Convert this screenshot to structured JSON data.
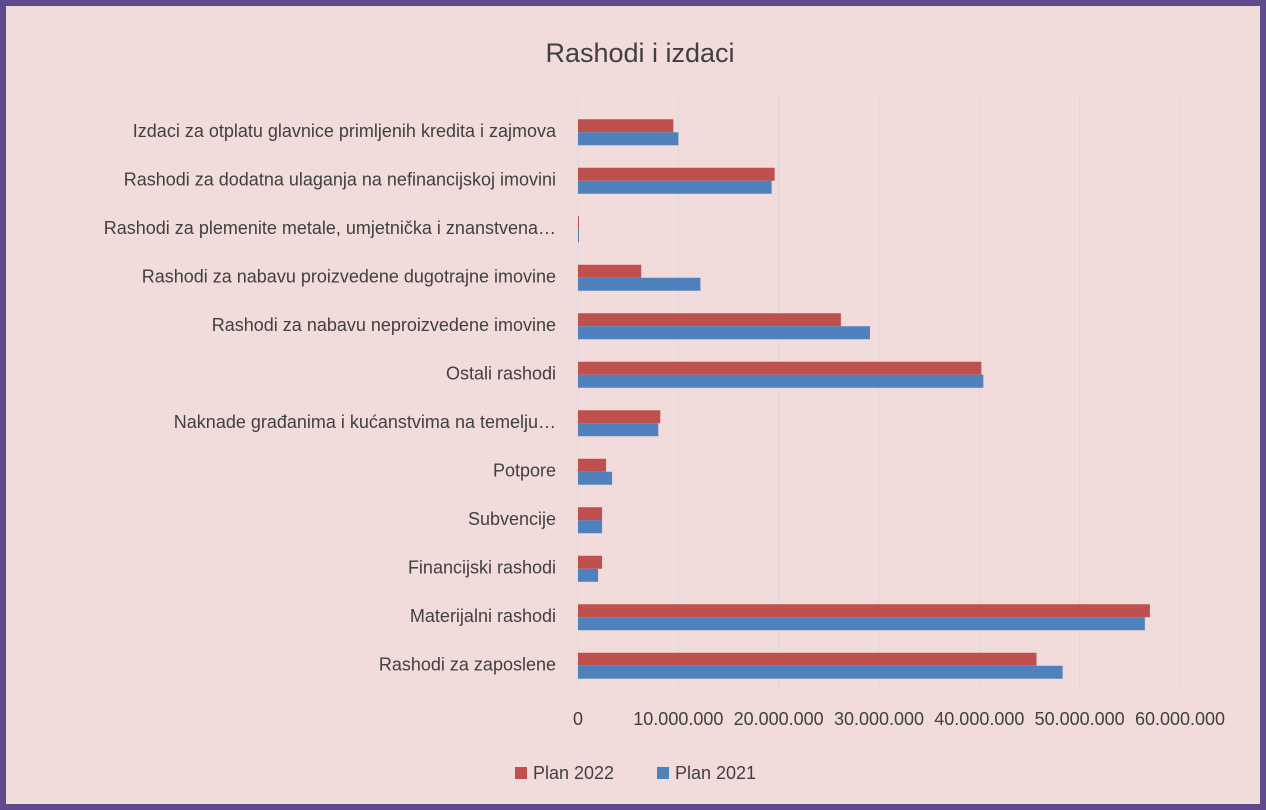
{
  "chart_data": {
    "type": "hbar",
    "title": "Rashodi i izdaci",
    "categories": [
      "Izdaci za otplatu glavnice primljenih kredita i zajmova",
      "Rashodi za dodatna ulaganja na nefinancijskoj imovini",
      "Rashodi za plemenite metale, umjetnička i znanstvena…",
      "Rashodi za nabavu proizvedene dugotrajne imovine",
      "Rashodi za nabavu neproizvedene imovine",
      "Ostali rashodi",
      "Naknade građanima i kućanstvima na temelju…",
      "Potpore",
      "Subvencije",
      "Financijski rashodi",
      "Materijalni rashodi",
      "Rashodi za zaposlene"
    ],
    "series": [
      {
        "name": "Plan 2022",
        "color": "#c0504d",
        "values": [
          9500000,
          19600000,
          100000,
          6300000,
          26200000,
          40200000,
          8200000,
          2800000,
          2400000,
          2400000,
          57000000,
          45700000
        ]
      },
      {
        "name": "Plan 2021",
        "color": "#4f81bd",
        "values": [
          10000000,
          19300000,
          100000,
          12200000,
          29100000,
          40400000,
          8000000,
          3400000,
          2400000,
          2000000,
          56500000,
          48300000
        ]
      }
    ],
    "xlim": [
      0,
      60000000
    ],
    "xticks": [
      0,
      {
        "value": 10000000,
        "label": "10.000.000"
      },
      {
        "value": 20000000,
        "label": "20.000.000"
      },
      {
        "value": 30000000,
        "label": "30.000.000"
      },
      {
        "value": 40000000,
        "label": "40.000.000"
      },
      {
        "value": 50000000,
        "label": "50.000.000"
      },
      {
        "value": 60000000,
        "label": "60.000.000"
      }
    ],
    "grid": true,
    "legend": "bottom"
  }
}
